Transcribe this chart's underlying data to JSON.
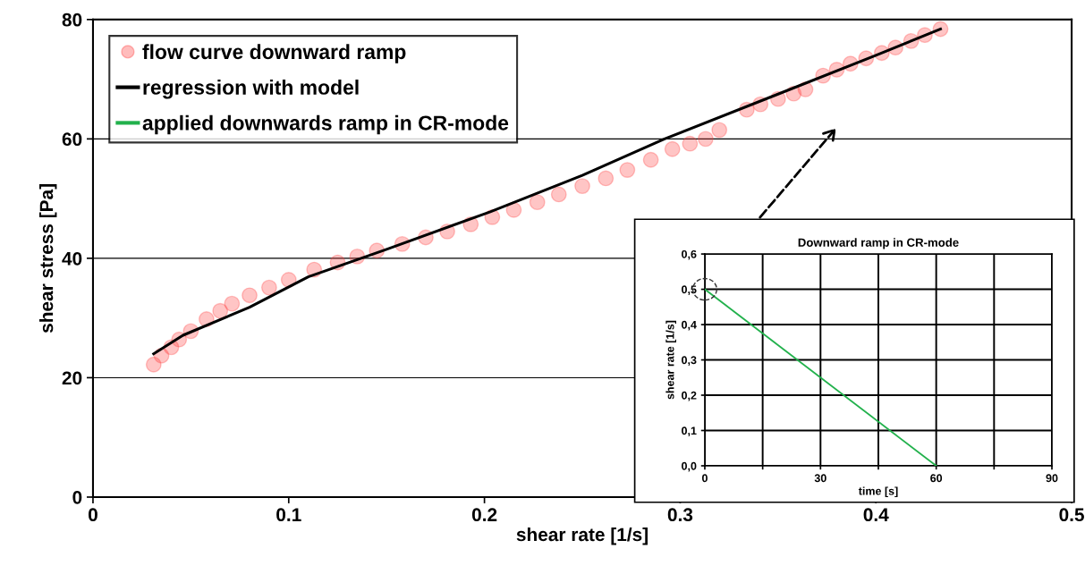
{
  "chart_data": [
    {
      "type": "scatter",
      "xlabel": "shear rate [1/s]",
      "ylabel": "shear stress [Pa]",
      "xlim": [
        0,
        0.5
      ],
      "xticks": [
        0,
        0.1,
        0.2,
        0.3,
        0.4,
        0.5
      ],
      "ylim": [
        0,
        80
      ],
      "yticks": [
        0,
        20,
        40,
        60,
        80
      ],
      "grid": "y",
      "legend": "top left",
      "series": [
        {
          "name": "flow curve downward ramp",
          "color": "#ff4040",
          "marker": "circle",
          "x": [
            0.031,
            0.035,
            0.04,
            0.044,
            0.05,
            0.058,
            0.065,
            0.071,
            0.08,
            0.09,
            0.1,
            0.113,
            0.125,
            0.135,
            0.145,
            0.158,
            0.17,
            0.181,
            0.193,
            0.204,
            0.215,
            0.227,
            0.238,
            0.25,
            0.262,
            0.273,
            0.285,
            0.296,
            0.305,
            0.313,
            0.32,
            0.334,
            0.341,
            0.35,
            0.358,
            0.364,
            0.373,
            0.38,
            0.387,
            0.395,
            0.403,
            0.41,
            0.418,
            0.425,
            0.433
          ],
          "values": [
            22.2,
            23.7,
            25.1,
            26.4,
            27.8,
            29.8,
            31.2,
            32.4,
            33.8,
            35.1,
            36.4,
            38.1,
            39.3,
            40.3,
            41.3,
            42.4,
            43.5,
            44.5,
            45.7,
            46.9,
            48.1,
            49.4,
            50.7,
            52.1,
            53.4,
            54.8,
            56.5,
            58.3,
            59.2,
            60.0,
            61.5,
            64.9,
            65.8,
            66.7,
            67.6,
            68.3,
            70.6,
            71.6,
            72.6,
            73.5,
            74.4,
            75.3,
            76.4,
            77.4,
            78.4
          ]
        },
        {
          "name": "regression with model",
          "type": "line",
          "color": "#000000",
          "line_style": "solid",
          "x": [
            0.031,
            0.046,
            0.08,
            0.11,
            0.15,
            0.203,
            0.25,
            0.292,
            0.35,
            0.4,
            0.433
          ],
          "values": [
            24.0,
            27.1,
            31.8,
            36.9,
            41.5,
            47.8,
            53.9,
            60.0,
            67.5,
            74.0,
            78.4
          ]
        }
      ]
    },
    {
      "type": "line",
      "title": "Downward ramp in CR-mode",
      "xlabel": "time [s]",
      "ylabel": "shear rate [1/s]",
      "xlim": [
        0,
        90
      ],
      "xticks": [
        0,
        {
          "value": 15,
          "label": null
        },
        30,
        {
          "value": 45,
          "label": null
        },
        60,
        {
          "value": 75,
          "label": null
        },
        90
      ],
      "ylim": [
        0,
        0.6
      ],
      "yticks": [
        {
          "value": 0,
          "label": "0,0"
        },
        {
          "value": 0.1,
          "label": "0,1"
        },
        {
          "value": 0.2,
          "label": "0,2"
        },
        {
          "value": 0.3,
          "label": "0,3"
        },
        {
          "value": 0.4,
          "label": "0,4"
        },
        {
          "value": 0.5,
          "label": "0,5"
        },
        {
          "value": 0.6,
          "label": "0,6"
        }
      ],
      "grid": true,
      "legend": "top left",
      "series": [
        {
          "name": "applied downwards ramp in CR-mode",
          "color": "#22b14c",
          "line_style": "solid",
          "x": [
            0,
            60
          ],
          "values": [
            0.5,
            0
          ]
        }
      ]
    }
  ]
}
